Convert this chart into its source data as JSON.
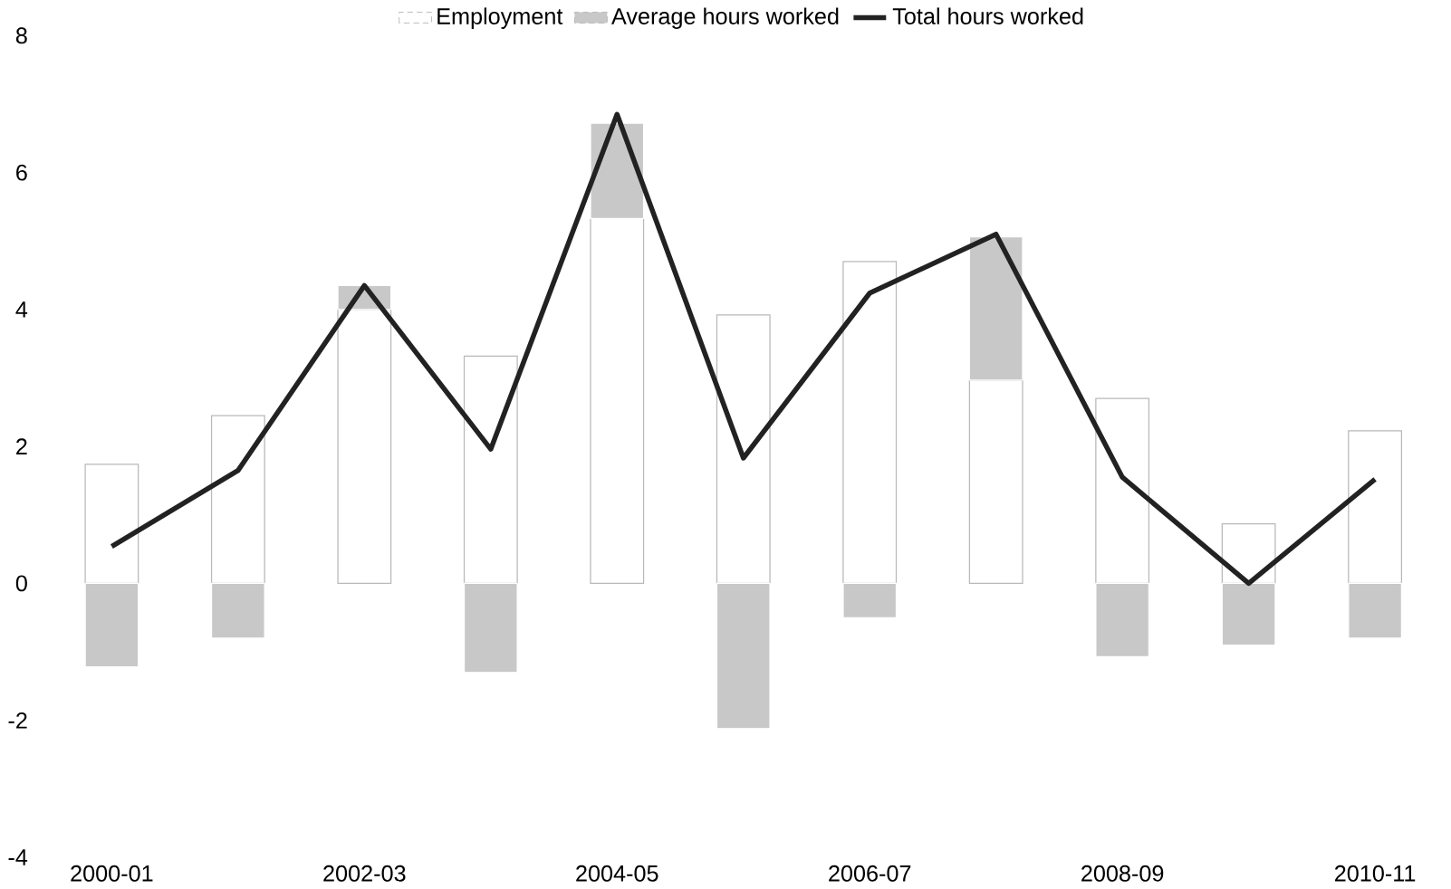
{
  "chart_data": {
    "type": "bar",
    "stacked": true,
    "categories": [
      "2000-01",
      null,
      "2002-03",
      null,
      "2004-05",
      null,
      "2006-07",
      null,
      "2008-09",
      null,
      "2010-11"
    ],
    "series": [
      {
        "name": "Employment",
        "color": "#ffffff",
        "values": [
          1.74,
          2.45,
          4.0,
          3.32,
          5.33,
          3.92,
          4.7,
          2.97,
          2.7,
          0.87,
          2.23
        ]
      },
      {
        "name": "Average hours worked",
        "color": "#c8c8c8",
        "values": [
          -1.22,
          -0.8,
          0.35,
          -1.3,
          1.39,
          -2.12,
          -0.5,
          2.09,
          -1.07,
          -0.9,
          -0.8
        ]
      },
      {
        "name": "Total hours worked",
        "type": "line",
        "color": "#222222",
        "values": [
          0.54,
          1.65,
          4.35,
          1.96,
          6.85,
          1.83,
          4.24,
          5.1,
          1.55,
          0.0,
          1.52
        ]
      }
    ],
    "ylim": [
      -4,
      8
    ],
    "yticks": [
      -4,
      -2,
      0,
      2,
      4,
      6,
      8
    ],
    "grid": false,
    "legend": "top"
  }
}
